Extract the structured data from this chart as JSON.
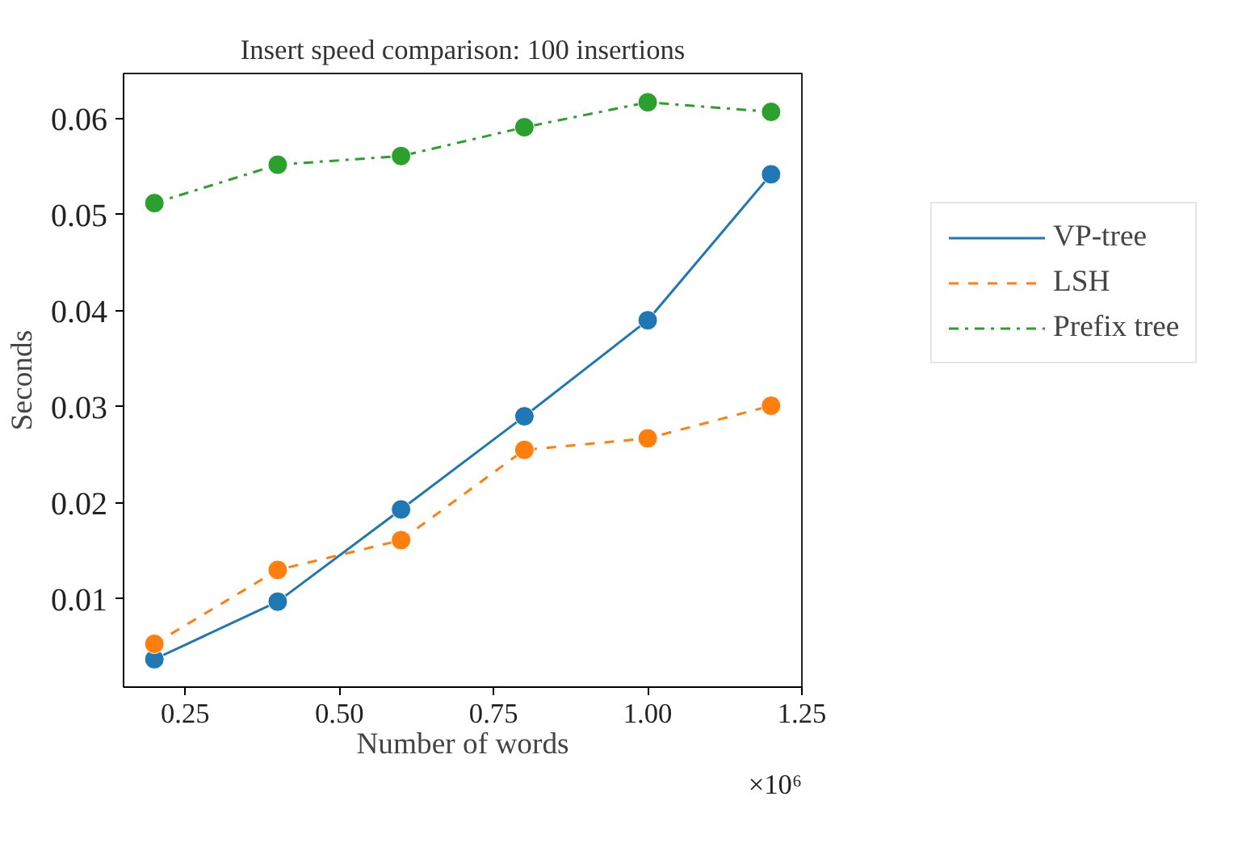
{
  "chart_data": {
    "type": "line",
    "title": "Insert speed comparison: 100 insertions",
    "xlabel": "Number of words",
    "ylabel": "Seconds",
    "x": [
      0.2,
      0.4,
      0.6,
      0.8,
      1.0,
      1.2
    ],
    "series": [
      {
        "name": "VP-tree",
        "color": "#1f77b4",
        "line_style": "solid",
        "values": [
          0.0037,
          0.0097,
          0.0193,
          0.029,
          0.039,
          0.0542
        ]
      },
      {
        "name": "LSH",
        "color": "#ff7f0e",
        "line_style": "dashed",
        "values": [
          0.0053,
          0.013,
          0.0161,
          0.0255,
          0.0267,
          0.0301
        ]
      },
      {
        "name": "Prefix tree",
        "color": "#2ca02c",
        "line_style": "dashdot",
        "values": [
          0.0512,
          0.0552,
          0.0561,
          0.0591,
          0.0617,
          0.0607
        ]
      }
    ],
    "marker": "circle",
    "xlim": [
      0.15,
      1.25
    ],
    "ylim": [
      0.0008,
      0.0647
    ],
    "xticks": [
      {
        "value": 0.25,
        "label": "0.25"
      },
      {
        "value": 0.5,
        "label": "0.50"
      },
      {
        "value": 0.75,
        "label": "0.75"
      },
      {
        "value": 1.0,
        "label": "1.00"
      },
      {
        "value": 1.25,
        "label": "1.25"
      }
    ],
    "yticks": [
      0.01,
      0.02,
      0.03,
      0.04,
      0.05,
      0.06
    ],
    "annotations": [
      "×10⁶"
    ],
    "grid": false,
    "legend": "top right"
  }
}
